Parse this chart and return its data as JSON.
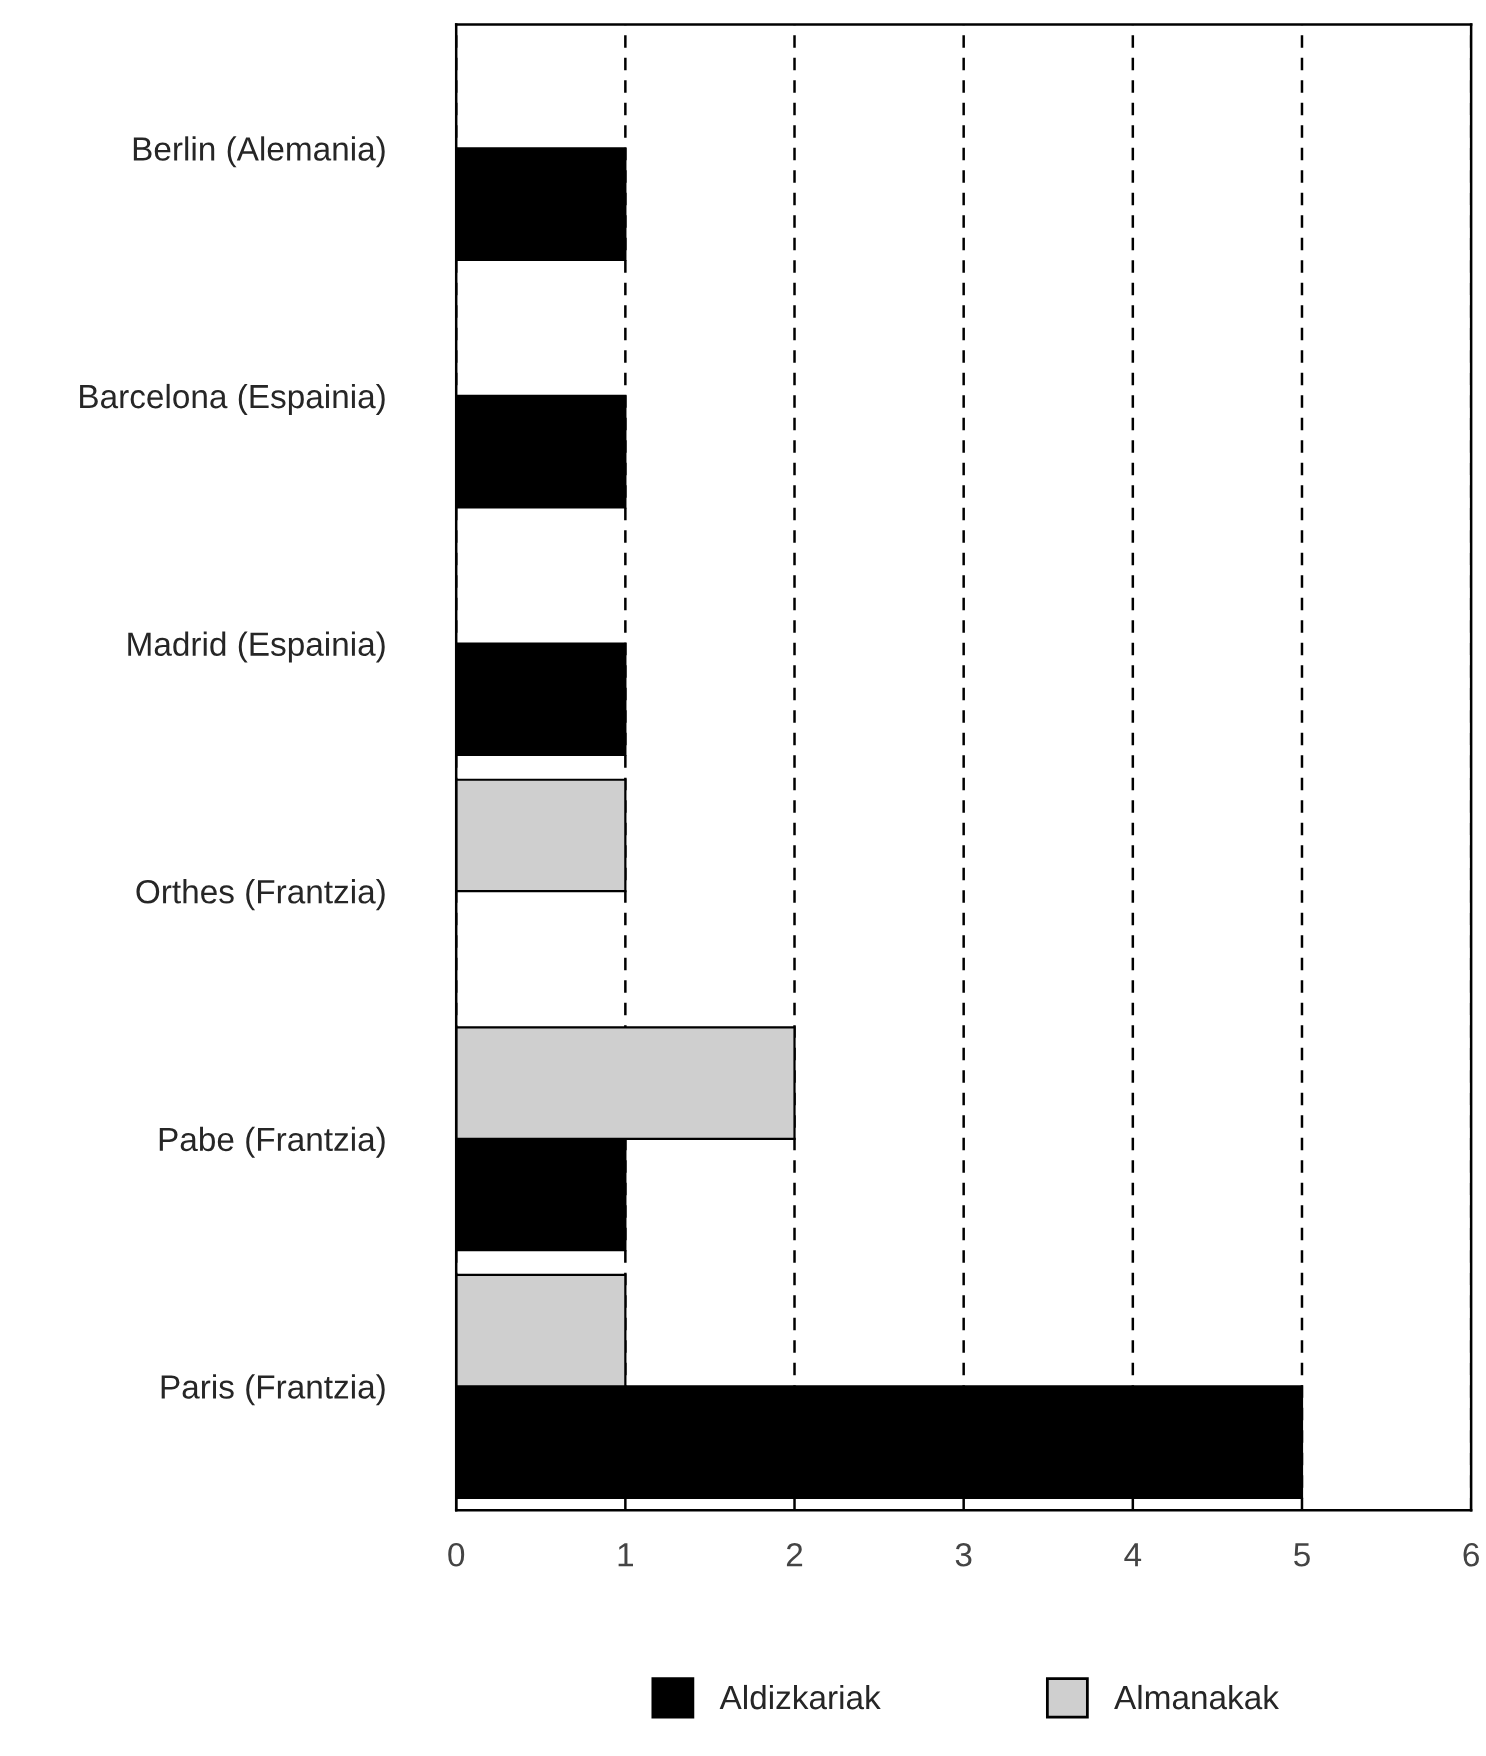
{
  "chart_data": {
    "type": "bar",
    "orientation": "horizontal",
    "categories": [
      "Berlin (Alemania)",
      "Barcelona (Espainia)",
      "Madrid (Espainia)",
      "Orthes (Frantzia)",
      "Pabe (Frantzia)",
      "Paris (Frantzia)"
    ],
    "series": [
      {
        "name": "Aldizkariak",
        "color": "#000000",
        "values": [
          1,
          1,
          1,
          null,
          1,
          5
        ]
      },
      {
        "name": "Almanakak",
        "color": "#cfcfcf",
        "values": [
          null,
          null,
          null,
          1,
          2,
          1
        ]
      }
    ],
    "xlim": [
      0,
      6
    ],
    "xticks": [
      0,
      1,
      2,
      3,
      4,
      5,
      6
    ],
    "grid": "x",
    "legend": "bottom"
  }
}
